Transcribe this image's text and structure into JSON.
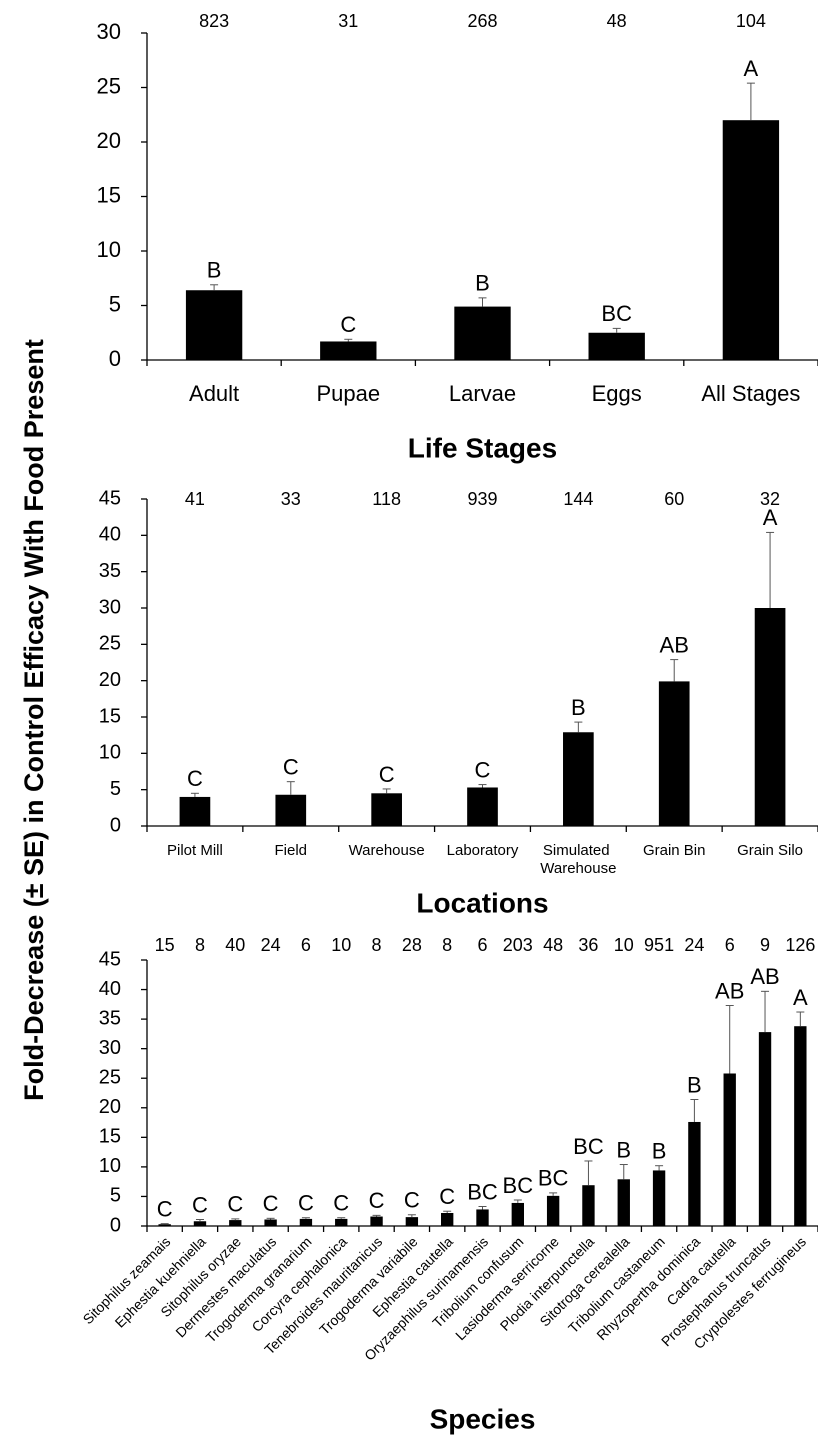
{
  "y_label": "Fold-Decrease (± SE) in Control Efficacy With Food Present",
  "chart_data": [
    {
      "type": "bar",
      "xlabel": "Life Stages",
      "color": "#000000",
      "categories": [
        "Adult",
        "Pupae",
        "Larvae",
        "Eggs",
        "All Stages"
      ],
      "values": [
        6.4,
        1.7,
        4.9,
        2.5,
        22
      ],
      "errors": [
        0.5,
        0.2,
        0.8,
        0.4,
        3.4
      ],
      "significance_labels": [
        "B",
        "C",
        "B",
        "BC",
        "A"
      ],
      "sample_sizes": [
        823,
        31,
        268,
        48,
        104
      ],
      "ylim": [
        0,
        30
      ],
      "yticks": [
        0,
        5,
        10,
        15,
        20,
        25,
        30
      ]
    },
    {
      "type": "bar",
      "xlabel": "Locations",
      "color": "#000000",
      "categories": [
        "Pilot Mill",
        "Field",
        "Warehouse",
        "Laboratory",
        "Simulated Warehouse",
        "Grain Bin",
        "Grain Silo"
      ],
      "values": [
        4.0,
        4.3,
        4.5,
        5.3,
        12.9,
        19.9,
        30
      ],
      "errors": [
        0.5,
        1.8,
        0.6,
        0.4,
        1.4,
        3.0,
        10.4
      ],
      "significance_labels": [
        "C",
        "C",
        "C",
        "C",
        "B",
        "AB",
        "A"
      ],
      "sample_sizes": [
        41,
        33,
        118,
        939,
        144,
        60,
        32
      ],
      "ylim": [
        0,
        45
      ],
      "yticks": [
        0,
        5,
        10,
        15,
        20,
        25,
        30,
        35,
        40,
        45
      ]
    },
    {
      "type": "bar",
      "xlabel": "Species",
      "color": "#000000",
      "categories": [
        "Sitophilus zeamais",
        "Ephestia kuehniella",
        "Sitophilus oryzae",
        "Dermestes maculatus",
        "Trogoderma granarium",
        "Corcyra cephalonica",
        "Tenebroides mauritanicus",
        "Trogoderma variabile",
        "Ephestia cautella",
        "Oryzaephilus surinamensis",
        "Tribolium confusum",
        "Lasioderma serricorne",
        "Plodia interpunctella",
        "Sitotroga cerealella",
        "Tribolium castaneum",
        "Rhyzopertha dominica",
        "Cadra cautella",
        "Prostephanus truncatus",
        "Cryptolestes ferrugineus"
      ],
      "values": [
        0.3,
        0.8,
        1.0,
        1.1,
        1.2,
        1.2,
        1.6,
        1.5,
        2.2,
        2.8,
        3.9,
        5.1,
        6.9,
        7.9,
        9.4,
        17.6,
        25.8,
        32.8,
        33.8
      ],
      "errors": [
        0.1,
        0.3,
        0.2,
        0.2,
        0.2,
        0.2,
        0.2,
        0.4,
        0.3,
        0.5,
        0.5,
        0.5,
        4.1,
        2.5,
        0.8,
        3.8,
        11.5,
        6.9,
        2.4
      ],
      "significance_labels": [
        "C",
        "C",
        "C",
        "C",
        "C",
        "C",
        "C",
        "C",
        "C",
        "BC",
        "BC",
        "BC",
        "BC",
        "B",
        "B",
        "B",
        "AB",
        "AB",
        "A"
      ],
      "sample_sizes": [
        15,
        8,
        40,
        24,
        6,
        10,
        8,
        28,
        8,
        6,
        203,
        48,
        36,
        10,
        951,
        24,
        6,
        9,
        126
      ],
      "ylim": [
        0,
        45
      ],
      "yticks": [
        0,
        5,
        10,
        15,
        20,
        25,
        30,
        35,
        40,
        45
      ]
    }
  ]
}
